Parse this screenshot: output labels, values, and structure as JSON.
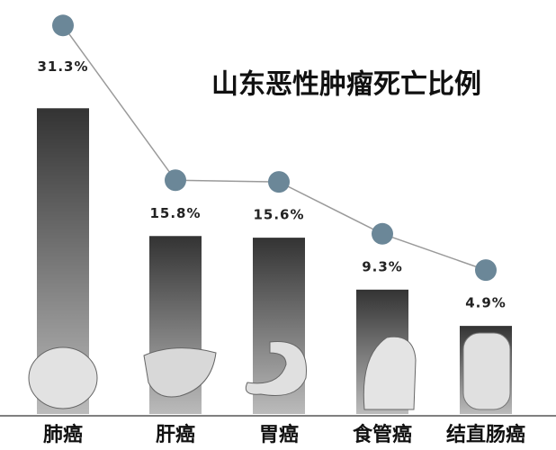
{
  "chart_data": {
    "type": "bar",
    "title": "山东恶性肿瘤死亡比例",
    "categories": [
      "肺癌",
      "肝癌",
      "胃癌",
      "食管癌",
      "结直肠癌"
    ],
    "values": [
      31.3,
      15.8,
      15.6,
      9.3,
      4.9
    ],
    "value_labels": [
      "31.3%",
      "15.8%",
      "15.6%",
      "9.3%",
      "4.9%"
    ],
    "color": "#3a3a3a",
    "line_color": "#9a9a9a",
    "marker_color": "#6b8798"
  }
}
